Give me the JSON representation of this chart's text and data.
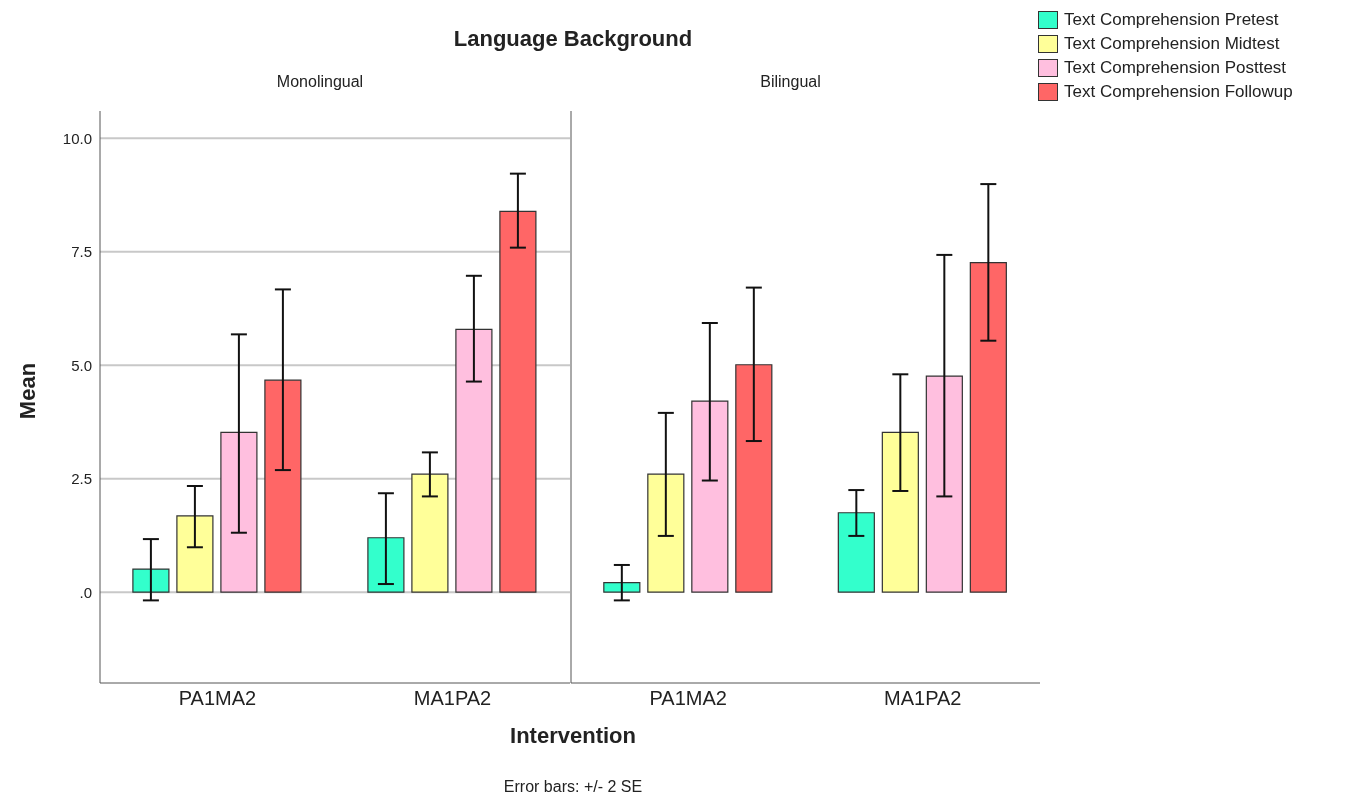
{
  "chart_data": [
    {
      "type": "bar",
      "title": "Language Background",
      "subtitle": "Monolingual",
      "xlabel": "Intervention",
      "ylabel": "Mean",
      "annotations": [
        "Error bars: +/- 2 SE"
      ],
      "categories": [
        "PA1MA2",
        "MA1PA2"
      ],
      "ylim": [
        -2,
        10.6
      ],
      "yticks": [
        {
          "value": 0,
          "label": ".0"
        },
        {
          "value": 2.5,
          "label": "2.5"
        },
        {
          "value": 5,
          "label": "5.0"
        },
        {
          "value": 7.5,
          "label": "7.5"
        },
        {
          "value": 10,
          "label": "10.0"
        }
      ],
      "grid": "y",
      "legend": "top right",
      "series": [
        {
          "name": "Text Comprehension Pretest",
          "color": "#33ffcc",
          "values": [
            0.51,
            1.2
          ],
          "errors": [
            [
              -0.18,
              1.17
            ],
            [
              0.18,
              2.18
            ]
          ]
        },
        {
          "name": "Text Comprehension Midtest",
          "color": "#ffff99",
          "values": [
            1.68,
            2.6
          ],
          "errors": [
            [
              0.99,
              2.34
            ],
            [
              2.11,
              3.08
            ]
          ]
        },
        {
          "name": "Text Comprehension Posttest",
          "color": "#ffbfdf",
          "values": [
            3.52,
            5.79
          ],
          "errors": [
            [
              1.31,
              5.68
            ],
            [
              4.64,
              6.97
            ]
          ]
        },
        {
          "name": "Text Comprehension Followup",
          "color": "#ff6666",
          "values": [
            4.67,
            8.39
          ],
          "errors": [
            [
              2.69,
              6.67
            ],
            [
              7.59,
              9.22
            ]
          ]
        }
      ]
    },
    {
      "type": "bar",
      "subtitle": "Bilingual",
      "categories": [
        "PA1MA2",
        "MA1PA2"
      ],
      "ylim": [
        -2,
        10.6
      ],
      "grid": "y",
      "tick_labels": "x",
      "series": [
        {
          "color": "#33ffcc",
          "values": [
            0.21,
            1.75
          ],
          "errors": [
            [
              -0.18,
              0.6
            ],
            [
              1.24,
              2.25
            ]
          ]
        },
        {
          "color": "#ffff99",
          "values": [
            2.6,
            3.52
          ],
          "errors": [
            [
              1.24,
              3.95
            ],
            [
              2.23,
              4.8
            ]
          ]
        },
        {
          "color": "#ffbfdf",
          "values": [
            4.21,
            4.76
          ],
          "errors": [
            [
              2.46,
              5.93
            ],
            [
              2.11,
              7.43
            ]
          ]
        },
        {
          "color": "#ff6666",
          "values": [
            5.01,
            7.26
          ],
          "errors": [
            [
              3.33,
              6.71
            ],
            [
              5.54,
              8.99
            ]
          ]
        }
      ]
    }
  ]
}
